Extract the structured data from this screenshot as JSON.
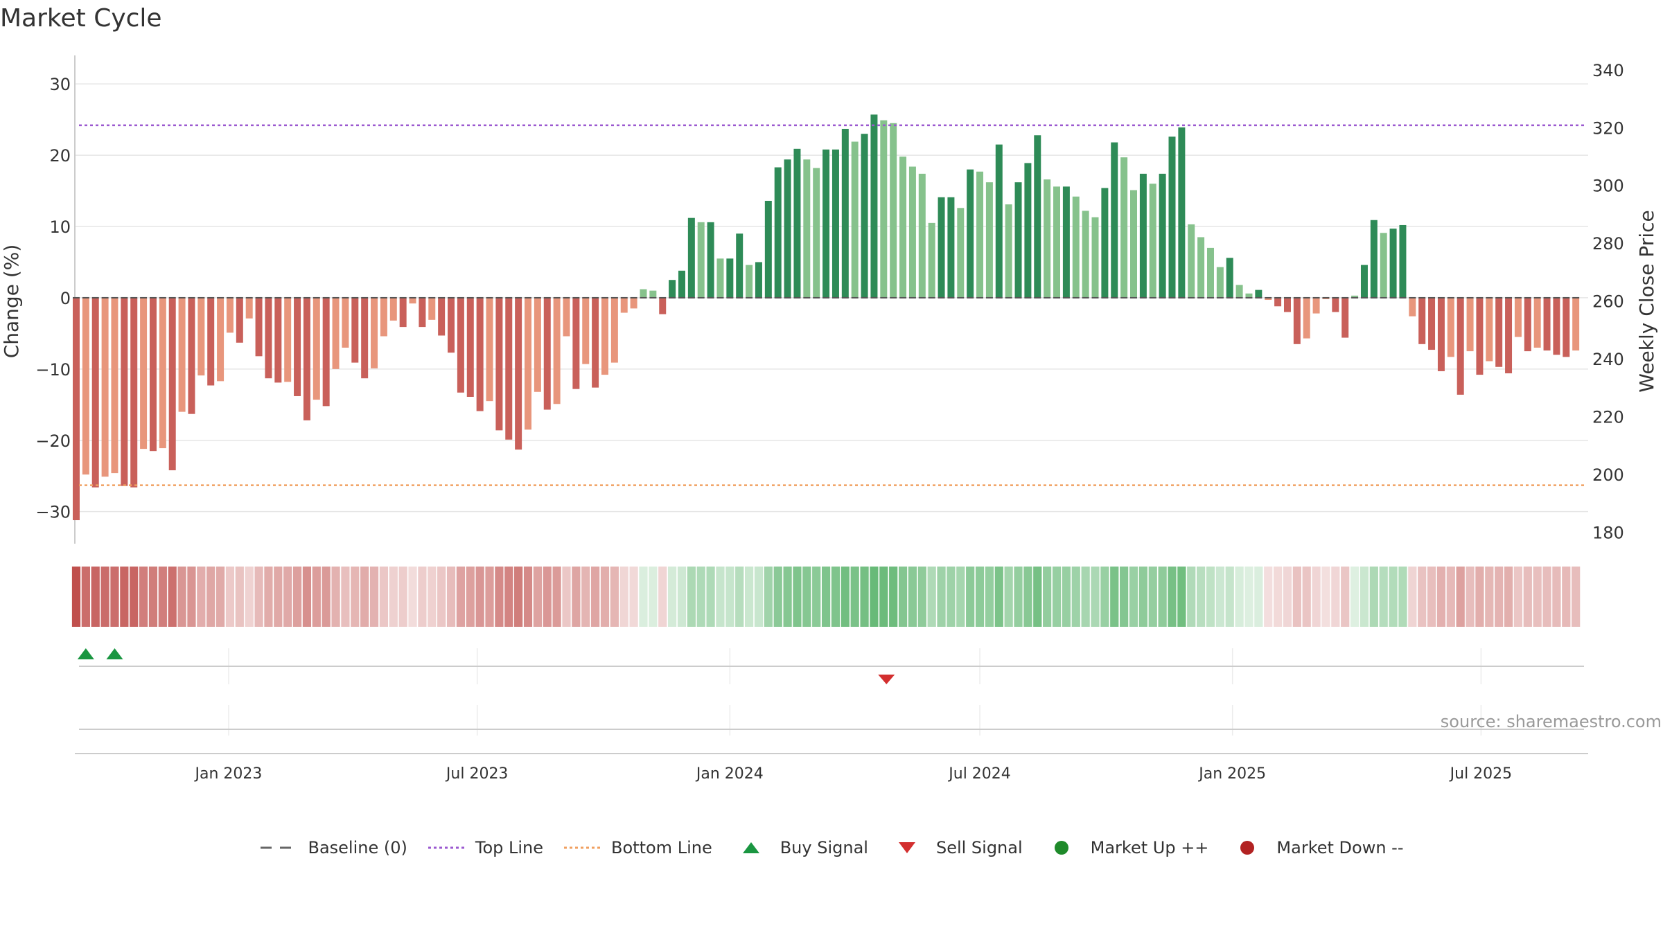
{
  "chart_data": {
    "type": "bar",
    "title": "Market Cycle",
    "ylabel": "Change (%)",
    "ylabel_right": "Weekly Close Price",
    "ylim": [
      -34.5,
      34
    ],
    "ylim_right": [
      176,
      345
    ],
    "y_ticks": [
      -30,
      -20,
      -10,
      0,
      10,
      20,
      30
    ],
    "y_ticks_right": [
      180,
      200,
      220,
      240,
      260,
      280,
      300,
      320,
      340
    ],
    "grid": true,
    "x_start": "2022-09-12",
    "x_step_days": 7,
    "x_range": [
      "2022-09-11",
      "2025-09-17"
    ],
    "x_ticks": [
      {
        "date": "2023-01-01",
        "label": "Jan 2023"
      },
      {
        "date": "2023-07-01",
        "label": "Jul 2023"
      },
      {
        "date": "2024-01-01",
        "label": "Jan 2024"
      },
      {
        "date": "2024-07-01",
        "label": "Jul 2024"
      },
      {
        "date": "2025-01-01",
        "label": "Jan 2025"
      },
      {
        "date": "2025-07-01",
        "label": "Jul 2025"
      }
    ],
    "reference_lines": [
      {
        "name": "Baseline (0)",
        "value": 0,
        "style": "dashed",
        "color": "#555555"
      },
      {
        "name": "Top Line",
        "value": 24.2,
        "style": "dotted",
        "color": "#9b59d0"
      },
      {
        "name": "Bottom Line",
        "value": -26.3,
        "style": "dotted",
        "color": "#f0a060"
      }
    ],
    "series": [
      {
        "name": "Change (%)",
        "values": [
          -31.2,
          -24.8,
          -26.6,
          -25.1,
          -24.6,
          -26.4,
          -26.6,
          -21.2,
          -21.5,
          -21.1,
          -24.2,
          -16,
          -16.3,
          -10.9,
          -12.3,
          -11.7,
          -4.9,
          -6.3,
          -2.9,
          -8.2,
          -11.3,
          -11.9,
          -11.8,
          -13.8,
          -17.2,
          -14.3,
          -15.2,
          -10,
          -7,
          -9.1,
          -11.3,
          -9.9,
          -5.4,
          -3.2,
          -4.1,
          -0.8,
          -4.1,
          -3.1,
          -5.3,
          -7.7,
          -13.3,
          -13.9,
          -15.9,
          -14.5,
          -18.6,
          -19.9,
          -21.3,
          -18.5,
          -13.2,
          -15.7,
          -14.9,
          -5.4,
          -12.8,
          -9.3,
          -12.6,
          -10.8,
          -9.1,
          -2.1,
          -1.5,
          1.2,
          1,
          -2.3,
          2.5,
          3.8,
          11.2,
          10.6,
          10.6,
          5.5,
          5.5,
          9,
          4.6,
          5,
          13.6,
          18.3,
          19.4,
          20.9,
          19.4,
          18.2,
          20.8,
          20.8,
          23.7,
          21.9,
          23,
          25.7,
          24.9,
          24.5,
          19.8,
          18.4,
          17.4,
          10.5,
          14.1,
          14.1,
          12.6,
          18,
          17.7,
          16.2,
          21.5,
          13.1,
          16.2,
          18.9,
          22.8,
          16.6,
          15.6,
          15.6,
          14.2,
          12.2,
          11.3,
          15.4,
          21.8,
          19.7,
          15.1,
          17.4,
          16,
          17.4,
          22.6,
          23.9,
          10.3,
          8.5,
          7,
          4.3,
          5.6,
          1.8,
          0.6,
          1.1,
          -0.3,
          -1.2,
          -2,
          -6.5,
          -5.7,
          -2.2,
          -0.2,
          -2,
          -5.6,
          0.3,
          4.6,
          10.9,
          9.1,
          9.7,
          10.2,
          -2.6,
          -6.5,
          -7.3,
          -10.3,
          -8.3,
          -13.6,
          -7.5,
          -10.8,
          -8.9,
          -9.7,
          -10.6,
          -5.5,
          -7.5,
          -7,
          -7.4,
          -8,
          -8.3,
          -7.4
        ]
      },
      {
        "name": "Weekly Close Price",
        "values": []
      }
    ],
    "heat_strip": {
      "color_up": "#4fae61",
      "color_down": "#c0504d"
    },
    "signals": [
      {
        "name": "Buy Signal",
        "date": "2022-09-19",
        "row": "buy"
      },
      {
        "name": "Buy Signal",
        "date": "2022-10-10",
        "row": "buy"
      },
      {
        "name": "Sell Signal",
        "date": "2024-04-24",
        "row": "sell"
      }
    ],
    "colors": {
      "bar_up_strong": "#2e8b57",
      "bar_up_light": "#86c28c",
      "bar_down_strong": "#c9605a",
      "bar_down_light": "#e8967c",
      "buy_signal": "#1a9641",
      "sell_signal": "#d32f2f",
      "market_up": "#1e8a2a",
      "market_down": "#b22222",
      "grid": "#e6e6e6",
      "axis": "#cccccc"
    },
    "legend_position": "bottom",
    "annotation": "source: sharemaestro.com"
  },
  "legend": [
    {
      "label": "Baseline (0)",
      "kind": "dash",
      "color": "#666666"
    },
    {
      "label": "Top Line",
      "kind": "dot",
      "color": "#9b59d0"
    },
    {
      "label": "Bottom Line",
      "kind": "dot",
      "color": "#f0a060"
    },
    {
      "label": "Buy Signal",
      "kind": "tri-up",
      "color": "#1a9641"
    },
    {
      "label": "Sell Signal",
      "kind": "tri-down",
      "color": "#d32f2f"
    },
    {
      "label": "Market Up ++",
      "kind": "circle",
      "color": "#1e8a2a"
    },
    {
      "label": "Market Down --",
      "kind": "circle",
      "color": "#b22222"
    }
  ]
}
